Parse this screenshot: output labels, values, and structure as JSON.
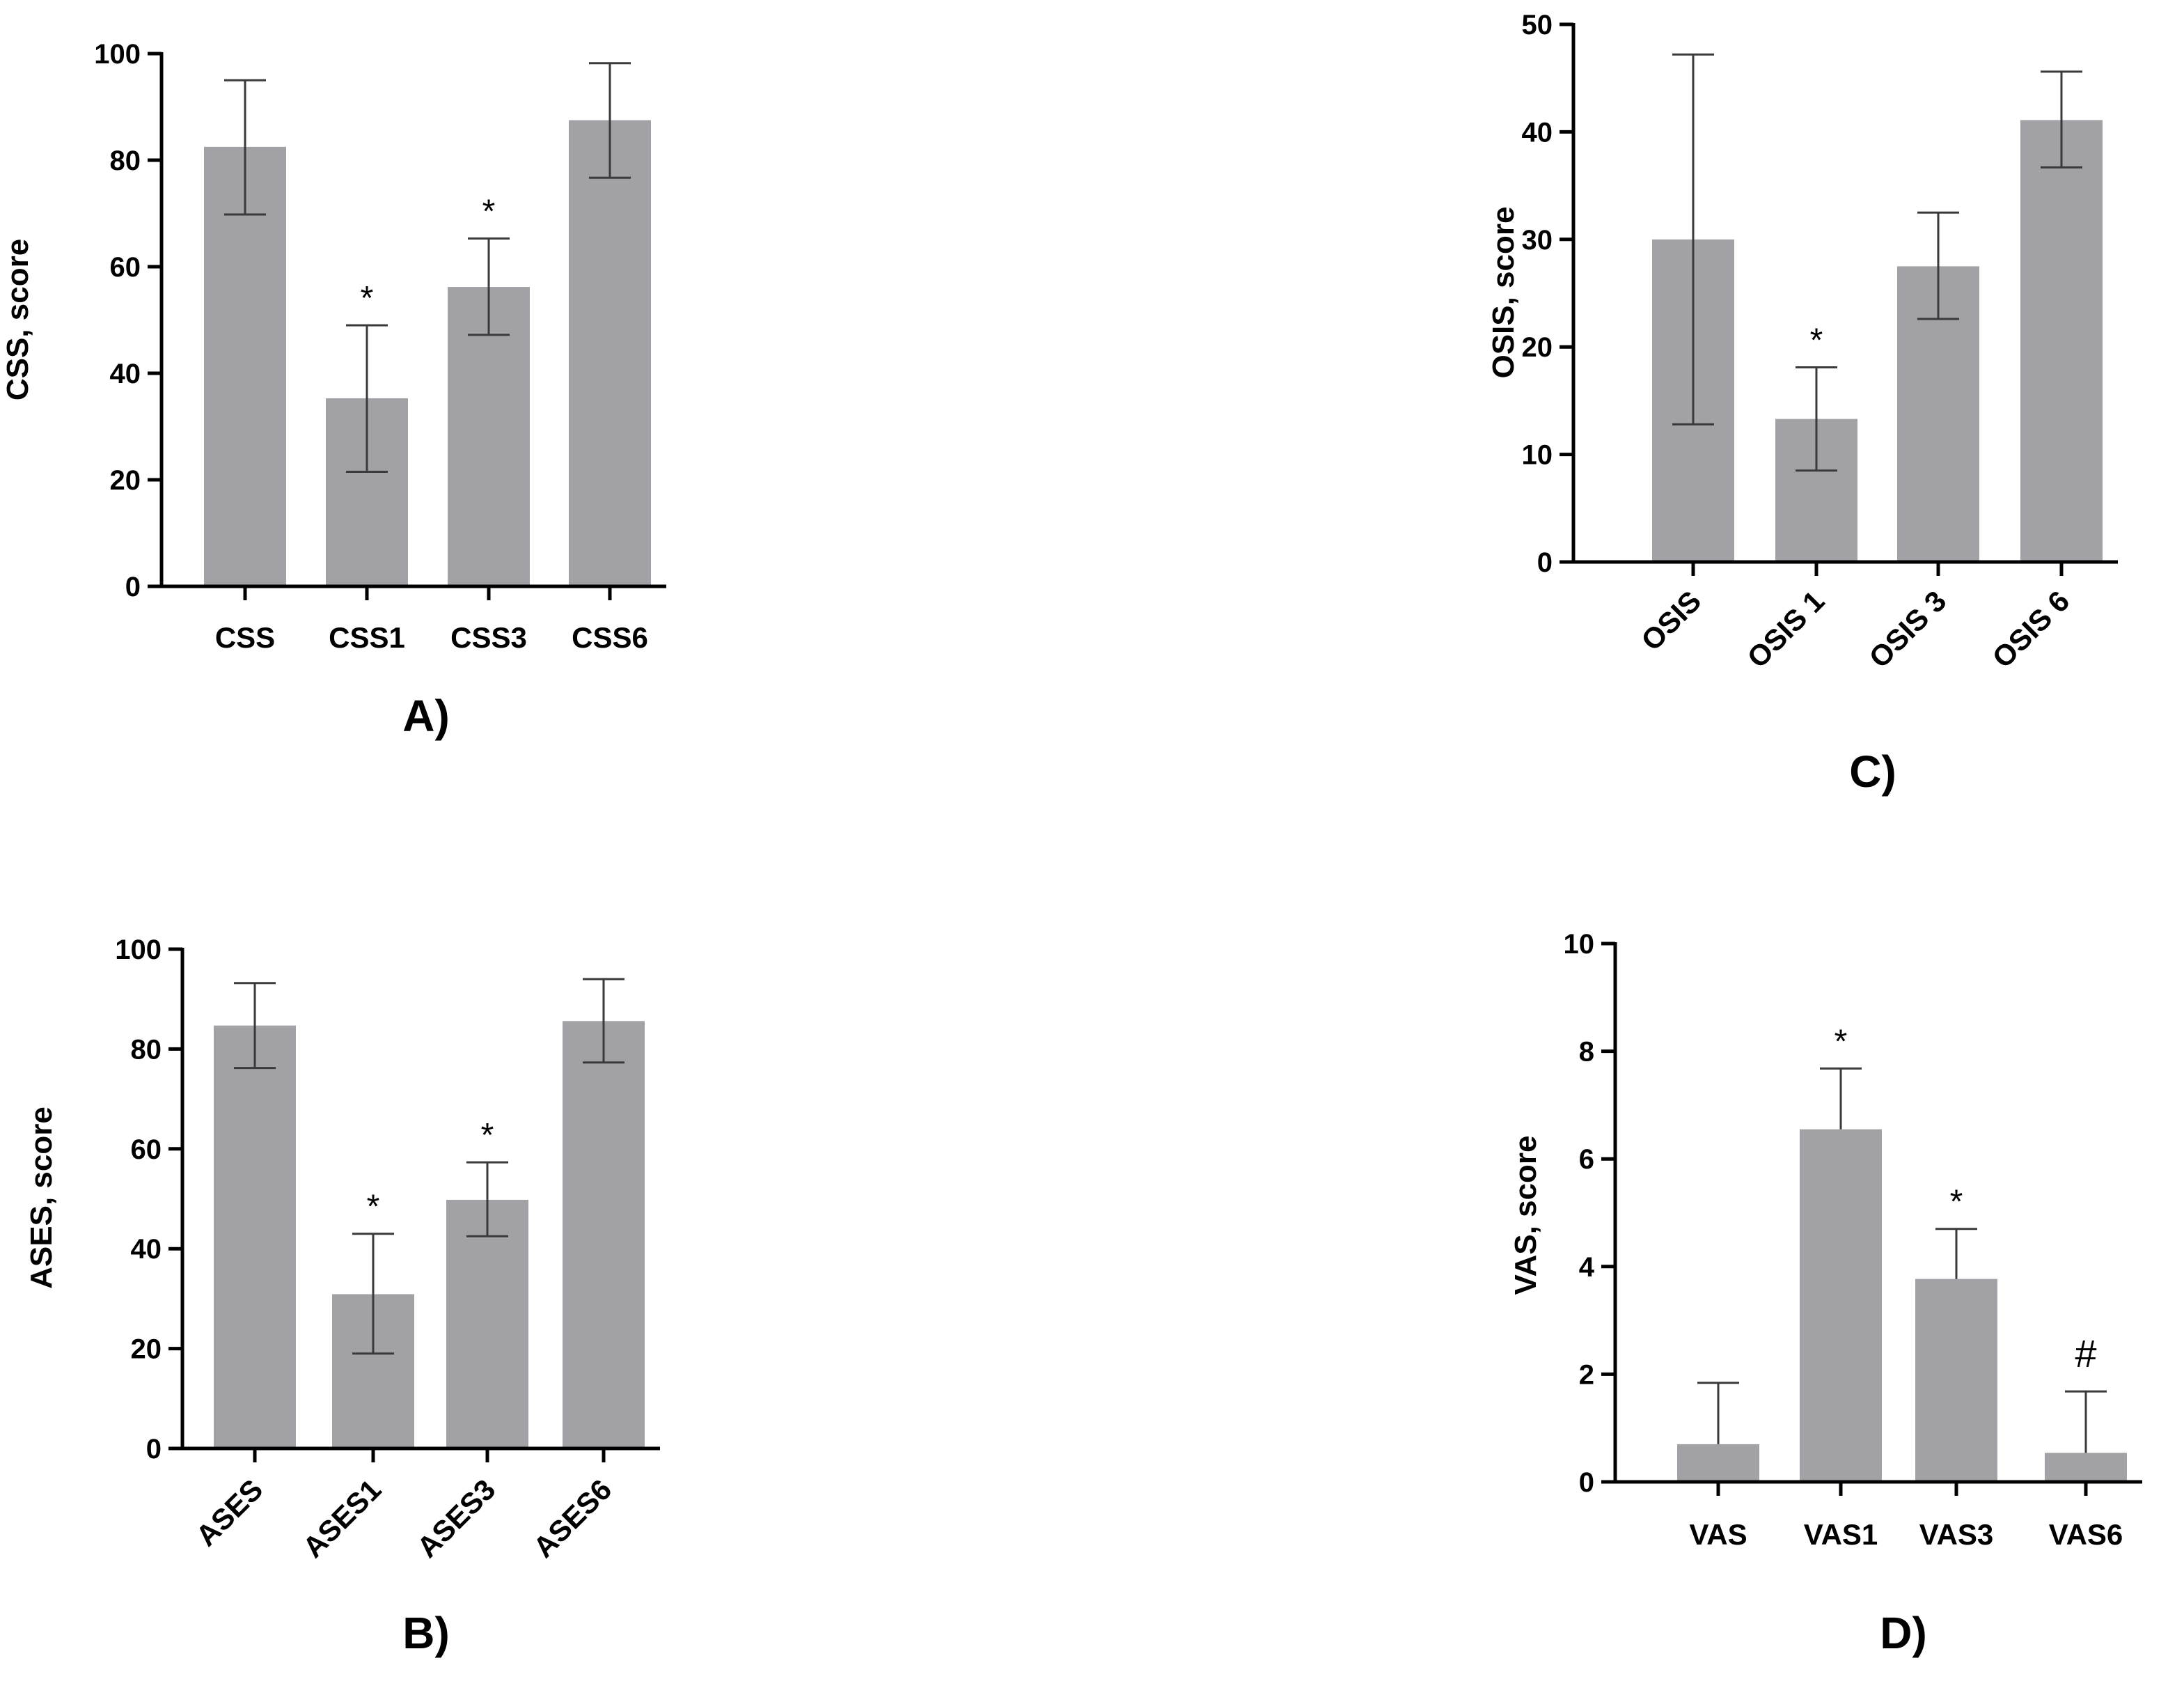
{
  "chart_data": [
    {
      "type": "bar",
      "panel": "A)",
      "ylabel": "CSS, score",
      "categories": [
        "CSS",
        "CSS1",
        "CSS3",
        "CSS6"
      ],
      "values": [
        82.5,
        35.3,
        56.2,
        87.5
      ],
      "error_low": [
        69.8,
        21.5,
        47.2,
        76.7
      ],
      "error_high": [
        95.0,
        49.0,
        65.3,
        98.2
      ],
      "markers": [
        "",
        "*",
        "*",
        ""
      ],
      "ylim": [
        0,
        100
      ],
      "yticks": [
        0,
        20,
        40,
        60,
        80,
        100
      ],
      "xtick_rotation": 0,
      "bar_color": "#a2a1a6"
    },
    {
      "type": "bar",
      "panel": "B)",
      "ylabel": "ASES, score",
      "categories": [
        "ASES",
        "ASES1",
        "ASES3",
        "ASES6"
      ],
      "values": [
        84.7,
        30.9,
        49.8,
        85.6
      ],
      "error_low": [
        76.2,
        19.0,
        42.5,
        77.3
      ],
      "error_high": [
        93.2,
        43.0,
        57.3,
        94.0
      ],
      "markers": [
        "",
        "*",
        "*",
        ""
      ],
      "ylim": [
        0,
        100
      ],
      "yticks": [
        0,
        20,
        40,
        60,
        80,
        100
      ],
      "xtick_rotation": -45,
      "bar_color": "#a2a1a6"
    },
    {
      "type": "bar",
      "panel": "C)",
      "ylabel": "OSIS, score",
      "categories": [
        "OSIS",
        "OSIS 1",
        "OSIS 3",
        "OSIS 6"
      ],
      "values": [
        30.0,
        13.3,
        27.5,
        41.1
      ],
      "error_low": [
        12.8,
        8.5,
        22.6,
        36.7
      ],
      "error_high": [
        47.2,
        18.1,
        32.5,
        45.6
      ],
      "markers": [
        "",
        "*",
        "",
        ""
      ],
      "ylim": [
        0,
        50
      ],
      "yticks": [
        0,
        10,
        20,
        30,
        40,
        50
      ],
      "xtick_rotation": -45,
      "bar_color": "#a2a1a6"
    },
    {
      "type": "bar",
      "panel": "D)",
      "ylabel": "VAS, score",
      "categories": [
        "VAS",
        "VAS1",
        "VAS3",
        "VAS6"
      ],
      "values": [
        0.7,
        6.55,
        3.77,
        0.54
      ],
      "error_low": [
        0.7,
        6.55,
        3.77,
        0.54
      ],
      "error_high": [
        1.84,
        7.68,
        4.7,
        1.68
      ],
      "markers": [
        "",
        "*",
        "*",
        "#"
      ],
      "ylim": [
        0,
        10
      ],
      "yticks": [
        0,
        2,
        4,
        6,
        8,
        10
      ],
      "xtick_rotation": 0,
      "bar_color": "#a2a1a6"
    }
  ]
}
